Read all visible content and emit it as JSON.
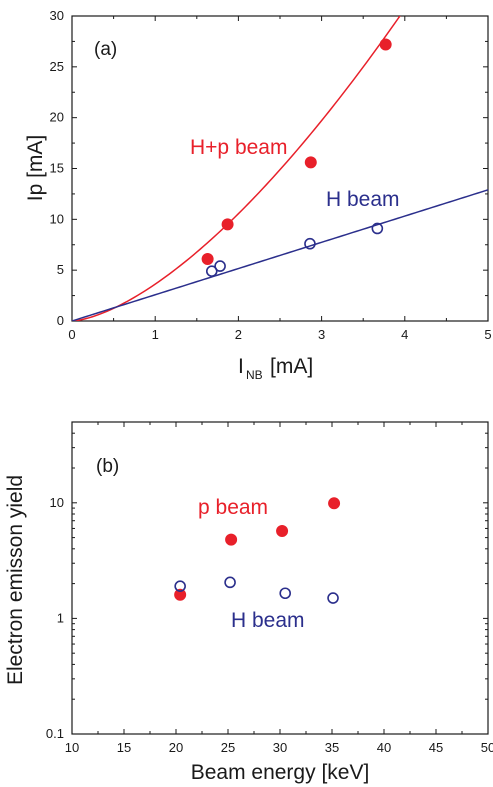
{
  "colors": {
    "red": "#e8202a",
    "blue": "#2b2f8c",
    "axis": "#1a1a1a"
  },
  "chart_data": [
    {
      "type": "scatter",
      "panel_label": "(a)",
      "xlabel": "I",
      "xlabel_sub": "NB",
      "xlabel_unit": "[mA]",
      "ylabel": "Ip [mA]",
      "xlim": [
        0,
        5
      ],
      "ylim": [
        0,
        30
      ],
      "xticks": [
        "0",
        "1",
        "2",
        "3",
        "4",
        "5"
      ],
      "yticks": [
        "0",
        "5",
        "10",
        "15",
        "20",
        "25",
        "30"
      ],
      "series": [
        {
          "name": "H+p beam",
          "marker": "filled-circle",
          "color": "#e8202a",
          "points": [
            [
              1.63,
              6.1
            ],
            [
              1.87,
              9.5
            ],
            [
              2.87,
              15.6
            ],
            [
              3.77,
              27.2
            ]
          ],
          "fit": {
            "form": "power",
            "a": 3.63,
            "b": 1.54
          }
        },
        {
          "name": "H beam",
          "marker": "open-circle",
          "color": "#2b2f8c",
          "points": [
            [
              1.68,
              4.9
            ],
            [
              1.78,
              5.4
            ],
            [
              2.86,
              7.6
            ],
            [
              3.67,
              9.1
            ]
          ],
          "fit": {
            "form": "linear",
            "slope": 2.58
          }
        }
      ]
    },
    {
      "type": "scatter",
      "panel_label": "(b)",
      "xlabel": "Beam energy [keV]",
      "ylabel": "Electron emisson yield",
      "xlim": [
        10,
        50
      ],
      "ylim": [
        0.1,
        50
      ],
      "yscale": "log",
      "xticks": [
        "10",
        "15",
        "20",
        "25",
        "30",
        "35",
        "40",
        "45",
        "50"
      ],
      "yticks": [
        "0.1",
        "1",
        "10"
      ],
      "series": [
        {
          "name": "p beam",
          "marker": "filled-circle",
          "color": "#e8202a",
          "points": [
            [
              20.4,
              1.6
            ],
            [
              25.3,
              4.8
            ],
            [
              30.2,
              5.7
            ],
            [
              35.2,
              9.9
            ]
          ]
        },
        {
          "name": "H beam",
          "marker": "open-circle",
          "color": "#2b2f8c",
          "points": [
            [
              20.4,
              1.9
            ],
            [
              25.2,
              2.05
            ],
            [
              30.5,
              1.65
            ],
            [
              35.1,
              1.5
            ]
          ]
        }
      ]
    }
  ]
}
